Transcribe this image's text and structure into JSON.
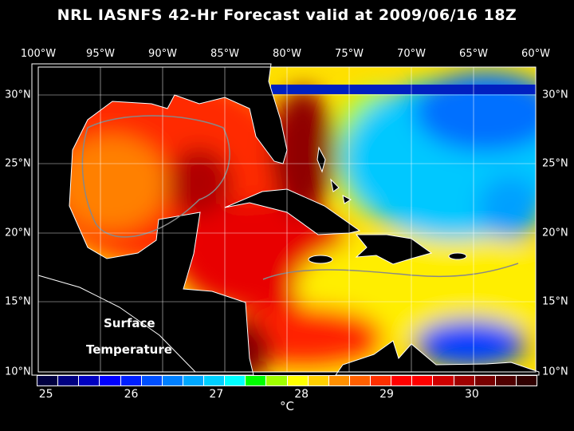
{
  "title": "NRL IASNFS  42-Hr Forecast valid at 2009/06/16 18Z",
  "lon_labels": [
    "100°W",
    "95°W",
    "90°W",
    "85°W",
    "80°W",
    "75°W",
    "70°W",
    "65°W",
    "60°W"
  ],
  "lat_labels": [
    "30°N",
    "25°N",
    "20°N",
    "15°N",
    "10°N"
  ],
  "overlay": {
    "line1": "Surface",
    "line2": "Temperature"
  },
  "colorbar": {
    "ticks": [
      "25",
      "26",
      "27",
      "28",
      "29",
      "30"
    ],
    "unit": "°C",
    "range": [
      24.9,
      30.75
    ],
    "colors": [
      "#000040",
      "#000080",
      "#0000c0",
      "#0000ff",
      "#0020ff",
      "#0050ff",
      "#0080ff",
      "#00a8ff",
      "#00d0ff",
      "#00ffff",
      "#00ff00",
      "#a0ff00",
      "#ffff00",
      "#ffd000",
      "#ff9000",
      "#ff6000",
      "#ff3000",
      "#ff0000",
      "#ff0000",
      "#d00000",
      "#a00000",
      "#780000",
      "#500000",
      "#300000"
    ]
  },
  "map": {
    "variable": "Surface Temperature",
    "lon_range": [
      "100°W",
      "60°W"
    ],
    "lat_range": [
      "10°N",
      "32°N"
    ],
    "land_color": "#000000"
  }
}
